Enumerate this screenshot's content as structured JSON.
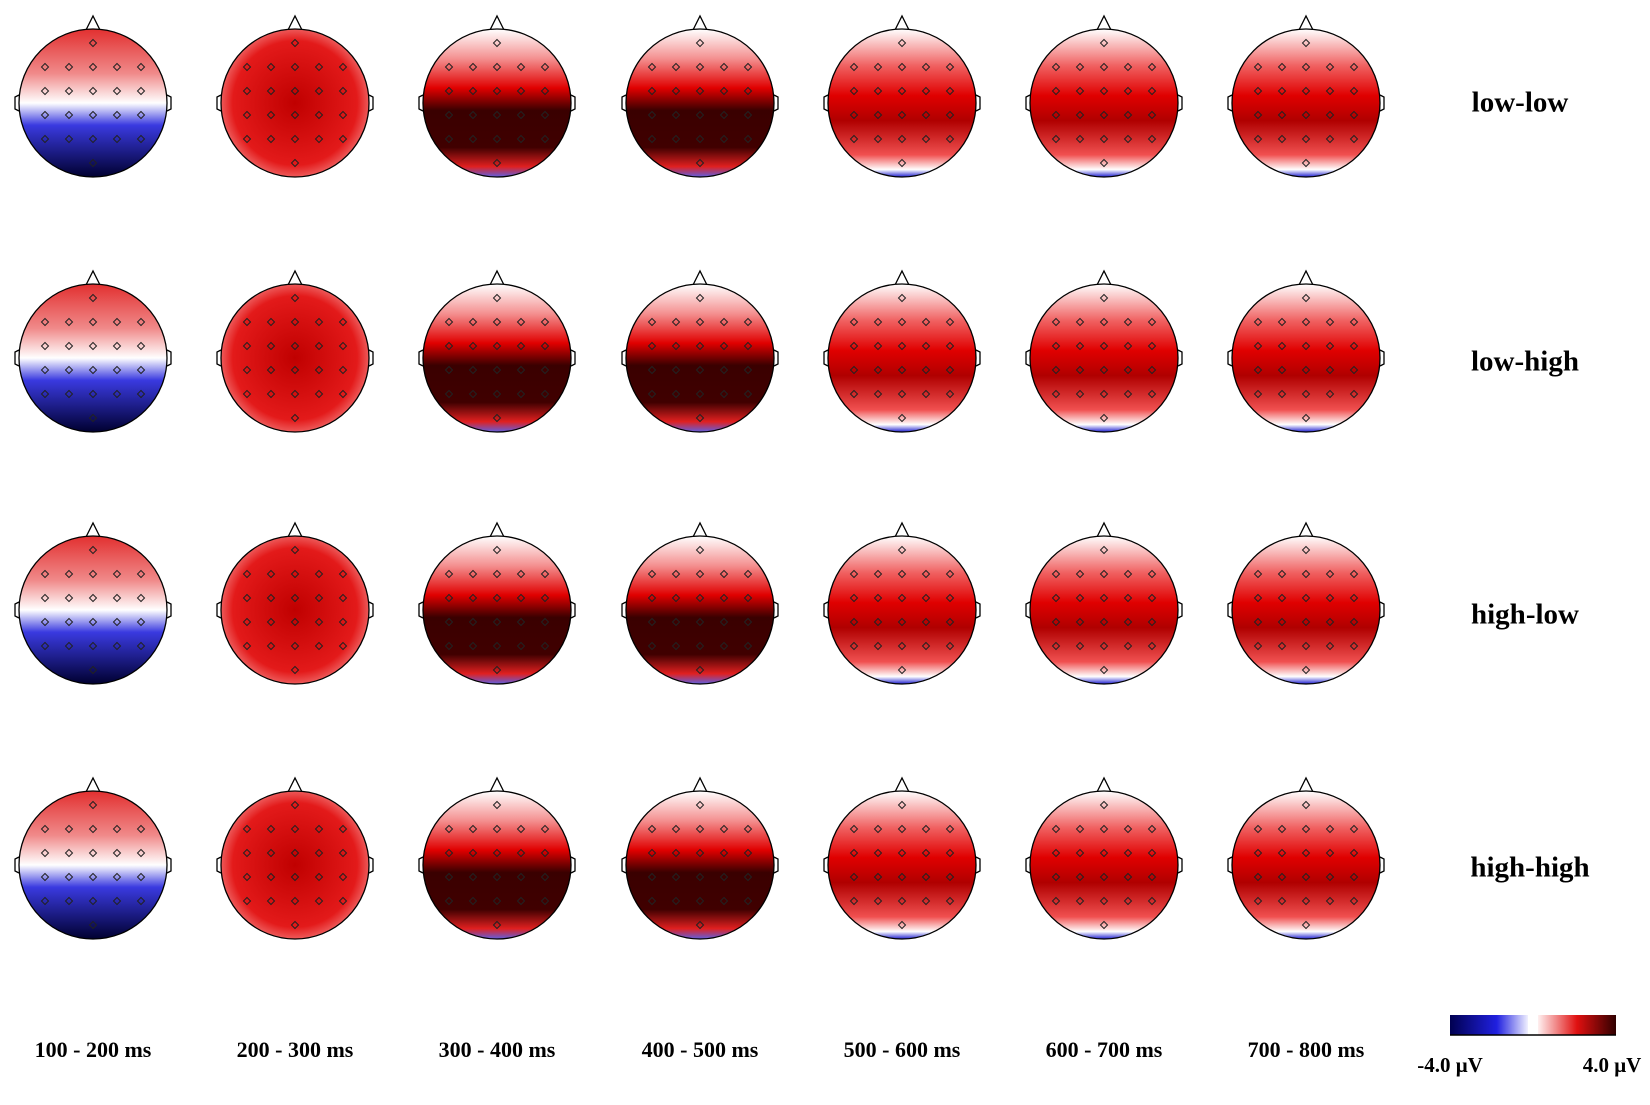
{
  "figure": {
    "conditions": [
      "low-low",
      "low-high",
      "high-low",
      "high-high"
    ],
    "time_windows": [
      "100 - 200 ms",
      "200 - 300 ms",
      "300 - 400 ms",
      "400 - 500 ms",
      "500 - 600 ms",
      "600 - 700 ms",
      "700 - 800 ms"
    ],
    "colorbar": {
      "min_label": "-4.0 μV",
      "max_label": "4.0 μV"
    }
  }
}
